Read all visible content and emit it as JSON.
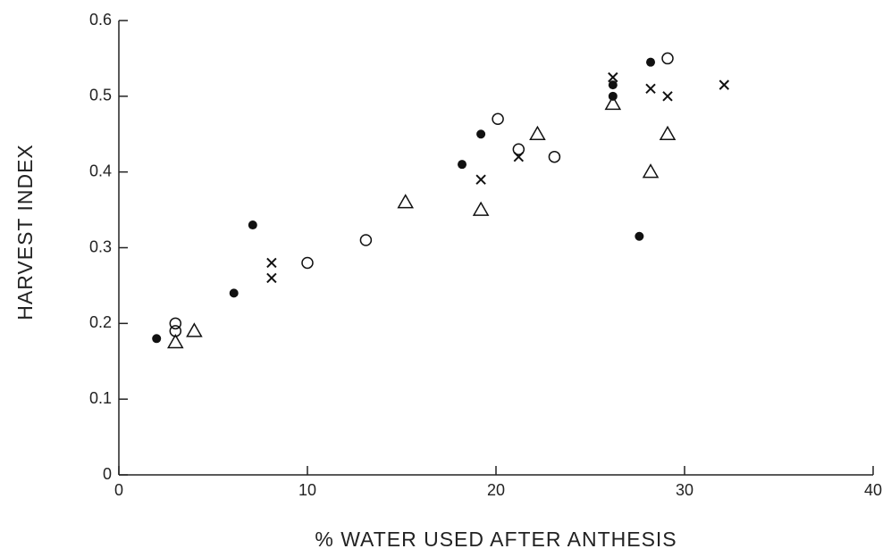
{
  "chart_data": {
    "type": "scatter",
    "xlabel": "% WATER USED AFTER ANTHESIS",
    "ylabel": "HARVEST INDEX",
    "xlim": [
      0,
      40
    ],
    "xticks": [
      0,
      10,
      20,
      30,
      40
    ],
    "ylim": [
      0,
      0.6
    ],
    "yticks": [
      0,
      0.1,
      0.2,
      0.3,
      0.4,
      0.5,
      0.6
    ],
    "series": [
      {
        "marker": "filled-circle",
        "color": "#111111",
        "x": [
          2.0,
          7.1,
          6.1,
          18.2,
          19.2,
          26.2,
          26.2,
          28.2,
          27.6
        ],
        "y": [
          0.18,
          0.33,
          0.24,
          0.41,
          0.45,
          0.5,
          0.515,
          0.545,
          0.315
        ]
      },
      {
        "marker": "open-circle",
        "color": "#111111",
        "x": [
          3.0,
          3.0,
          10.0,
          13.1,
          20.1,
          21.2,
          23.1,
          29.1
        ],
        "y": [
          0.2,
          0.19,
          0.28,
          0.31,
          0.47,
          0.43,
          0.42,
          0.55
        ]
      },
      {
        "marker": "cross",
        "color": "#111111",
        "x": [
          8.1,
          8.1,
          19.2,
          21.2,
          26.2,
          28.2,
          29.1,
          32.1
        ],
        "y": [
          0.28,
          0.26,
          0.39,
          0.42,
          0.525,
          0.51,
          0.5,
          0.515
        ]
      },
      {
        "marker": "triangle",
        "color": "#111111",
        "x": [
          3.0,
          4.0,
          15.2,
          19.2,
          22.2,
          26.2,
          28.2,
          29.1
        ],
        "y": [
          0.175,
          0.19,
          0.36,
          0.35,
          0.45,
          0.49,
          0.4,
          0.45
        ]
      }
    ]
  }
}
